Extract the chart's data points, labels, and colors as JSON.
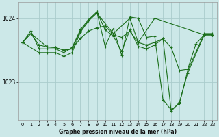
{
  "title": "Graphe pression niveau de la mer (hPa)",
  "background_color": "#cce8e8",
  "grid_color": "#aacccc",
  "line_color": "#1a6e1a",
  "xlim": [
    -0.5,
    23.5
  ],
  "ylim": [
    1022.4,
    1024.25
  ],
  "yticks": [
    1023,
    1024
  ],
  "xticks": [
    0,
    1,
    2,
    3,
    4,
    5,
    6,
    7,
    8,
    9,
    10,
    11,
    12,
    13,
    14,
    15,
    16,
    17,
    18,
    19,
    20,
    21,
    22,
    23
  ],
  "s1_x": [
    0,
    1,
    2,
    3,
    4,
    5,
    6,
    7,
    8,
    9,
    10,
    11,
    12,
    13,
    14,
    15,
    16,
    17,
    18,
    19,
    20,
    21,
    22,
    23
  ],
  "s1_y": [
    1023.62,
    1023.76,
    1023.58,
    1023.55,
    1023.54,
    1023.5,
    1023.52,
    1023.68,
    1023.8,
    1023.85,
    1023.88,
    1023.74,
    1023.7,
    1023.8,
    1023.62,
    1023.58,
    1023.62,
    1023.68,
    1023.54,
    1023.18,
    1023.2,
    1023.6,
    1023.74,
    1023.74
  ],
  "s2_x": [
    0,
    1,
    3,
    4,
    5,
    6,
    7,
    8,
    9,
    11,
    13,
    14,
    16,
    22,
    23
  ],
  "s2_y": [
    1023.62,
    1023.76,
    1023.55,
    1023.54,
    1023.5,
    1023.52,
    1023.8,
    1023.96,
    1024.08,
    1023.76,
    1024.0,
    1023.62,
    1024.0,
    1023.74,
    1023.74
  ],
  "s3_x": [
    0,
    1,
    2,
    3,
    4,
    5,
    6,
    7,
    8,
    9,
    10,
    11,
    12,
    13,
    14,
    15,
    16,
    17,
    18,
    19,
    20,
    22,
    23
  ],
  "s3_y": [
    1023.62,
    1023.8,
    1023.52,
    1023.52,
    1023.52,
    1023.46,
    1023.54,
    1023.82,
    1023.98,
    1024.1,
    1023.56,
    1023.84,
    1023.42,
    1024.02,
    1024.0,
    1023.7,
    1023.72,
    1022.72,
    1022.56,
    1022.66,
    1023.18,
    1023.76,
    1023.76
  ],
  "s4_x": [
    0,
    2,
    3,
    4,
    5,
    6,
    7,
    8,
    9,
    10,
    11,
    12,
    13,
    14,
    15,
    16,
    17,
    18,
    19,
    20,
    22,
    23
  ],
  "s4_y": [
    1023.62,
    1023.46,
    1023.46,
    1023.46,
    1023.4,
    1023.46,
    1023.78,
    1023.96,
    1024.1,
    1023.82,
    1023.72,
    1023.48,
    1023.82,
    1023.56,
    1023.52,
    1023.58,
    1023.68,
    1022.54,
    1022.68,
    1023.14,
    1023.74,
    1023.74
  ]
}
